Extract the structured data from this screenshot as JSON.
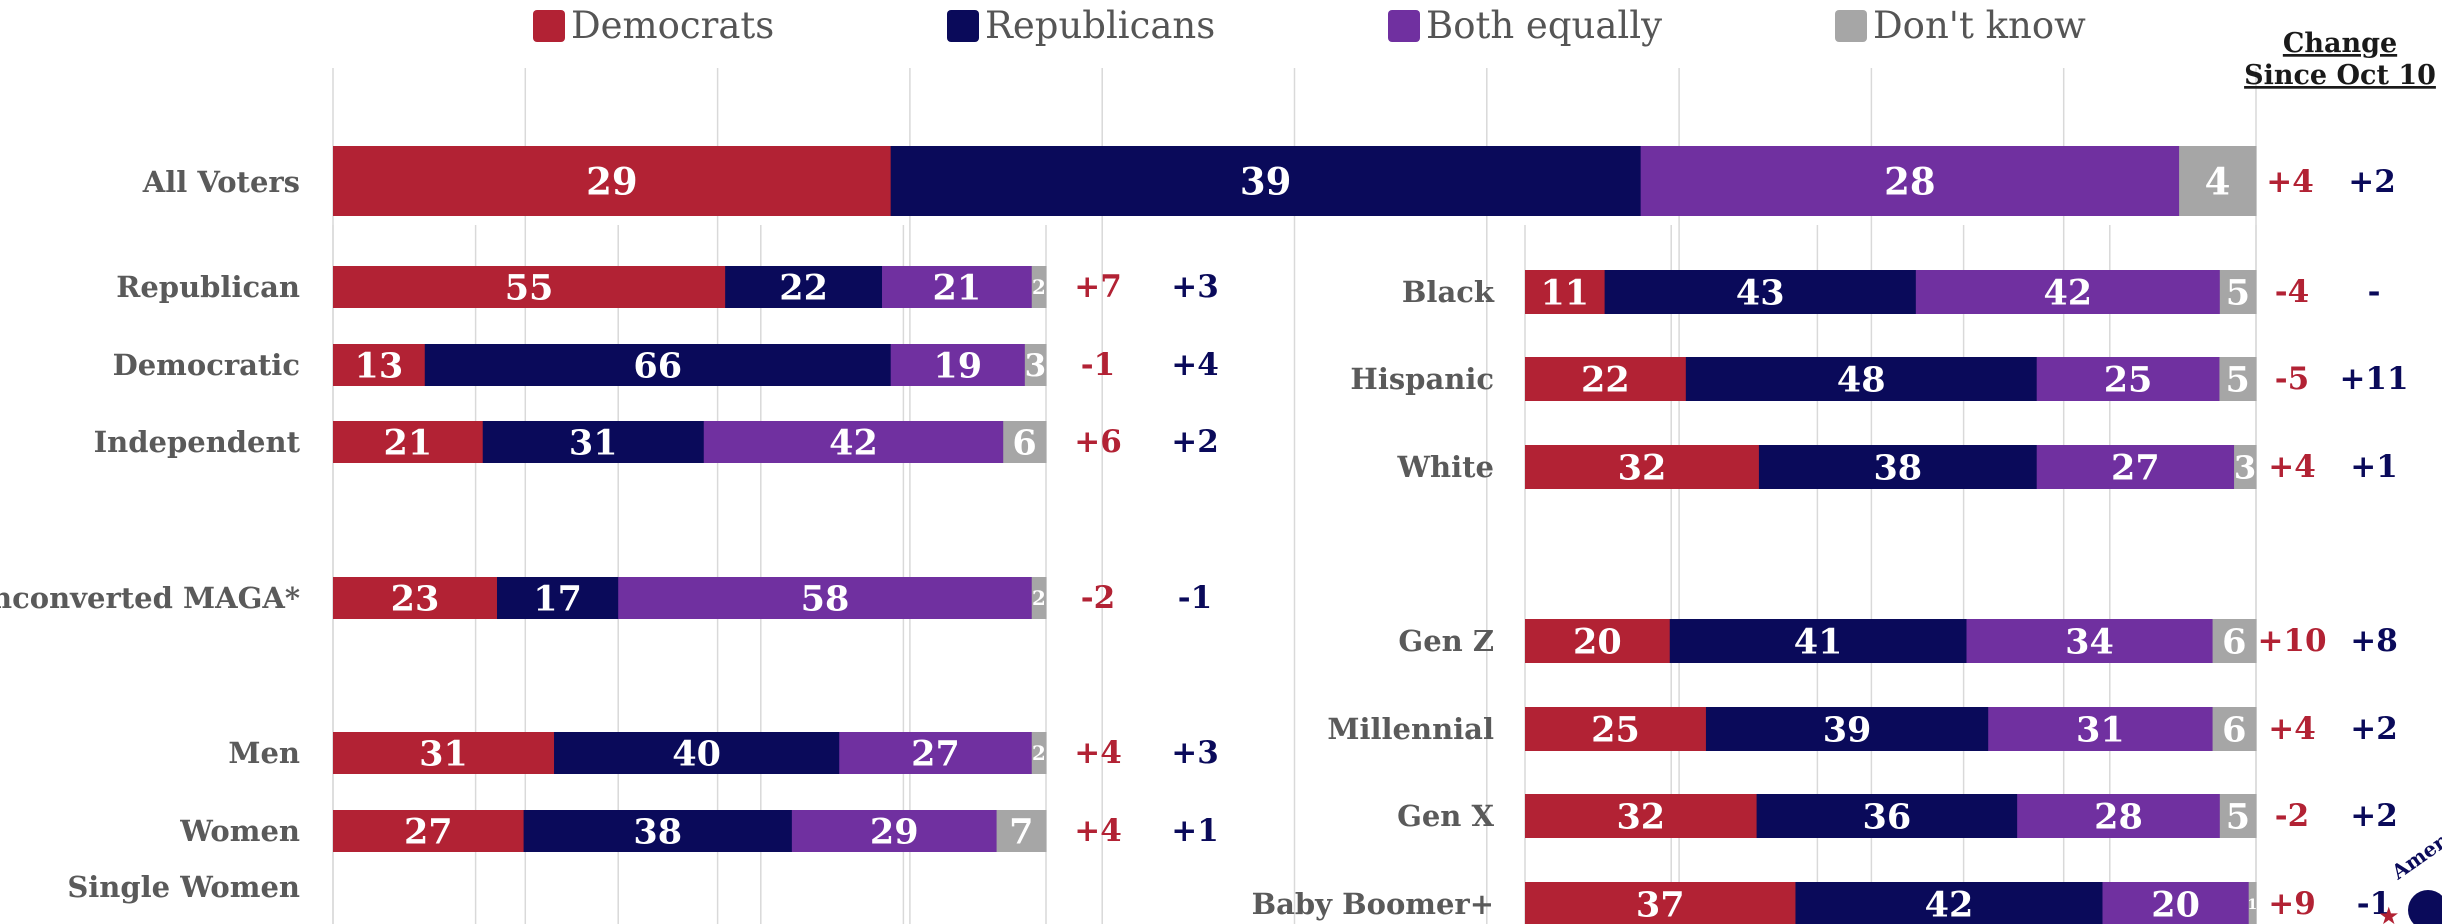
{
  "colors": {
    "democrats": "#b22234",
    "republicans": "#0a0a5a",
    "both_equally": "#7030a0",
    "dont_know": "#a6a6a6"
  },
  "chart_data": {
    "type": "bar",
    "orientation": "horizontal",
    "stacked": true,
    "legend": {
      "placement": "top",
      "entries": [
        "Democrats",
        "Republicans",
        "Both equally",
        "Don't know"
      ]
    },
    "change_header": [
      "Change",
      "Since Oct 10"
    ],
    "grid": true,
    "xlim": [
      0,
      100
    ],
    "panels": [
      {
        "rows": [
          {
            "label": "All Voters",
            "values": [
              29,
              39,
              28,
              4
            ],
            "change": [
              "+4",
              "+2"
            ]
          }
        ]
      },
      {
        "rows": [
          {
            "label": "Republican",
            "values": [
              55,
              22,
              21,
              2
            ],
            "change": [
              "+7",
              "+3"
            ]
          },
          {
            "label": "Democratic",
            "values": [
              13,
              66,
              19,
              3
            ],
            "change": [
              "-1",
              "+4"
            ]
          },
          {
            "label": "Independent",
            "values": [
              21,
              31,
              42,
              6
            ],
            "change": [
              "+6",
              "+2"
            ]
          },
          {
            "label": "Unconverted MAGA*",
            "values": [
              23,
              17,
              58,
              2
            ],
            "change": [
              "-2",
              "-1"
            ]
          },
          {
            "label": "Men",
            "values": [
              31,
              40,
              27,
              2
            ],
            "change": [
              "+4",
              "+3"
            ]
          },
          {
            "label": "Women",
            "values": [
              27,
              38,
              29,
              7
            ],
            "change": [
              "+4",
              "+1"
            ]
          },
          {
            "label": "Single Women",
            "values": null,
            "change": null
          }
        ]
      },
      {
        "rows": [
          {
            "label": "Black",
            "values": [
              11,
              43,
              42,
              5
            ],
            "change": [
              "-4",
              "-"
            ]
          },
          {
            "label": "Hispanic",
            "values": [
              22,
              48,
              25,
              5
            ],
            "change": [
              "-5",
              "+11"
            ]
          },
          {
            "label": "White",
            "values": [
              32,
              38,
              27,
              3
            ],
            "change": [
              "+4",
              "+1"
            ]
          },
          {
            "label": "Gen Z",
            "values": [
              20,
              41,
              34,
              6
            ],
            "change": [
              "+10",
              "+8"
            ]
          },
          {
            "label": "Millennial",
            "values": [
              25,
              39,
              31,
              6
            ],
            "change": [
              "+4",
              "+2"
            ]
          },
          {
            "label": "Gen X",
            "values": [
              32,
              36,
              28,
              5
            ],
            "change": [
              "-2",
              "+2"
            ]
          },
          {
            "label": "Baby Boomer+",
            "values": [
              37,
              42,
              20,
              1
            ],
            "change": [
              "+9",
              "-1"
            ]
          }
        ]
      }
    ]
  },
  "logo": {
    "text": "Amer"
  }
}
